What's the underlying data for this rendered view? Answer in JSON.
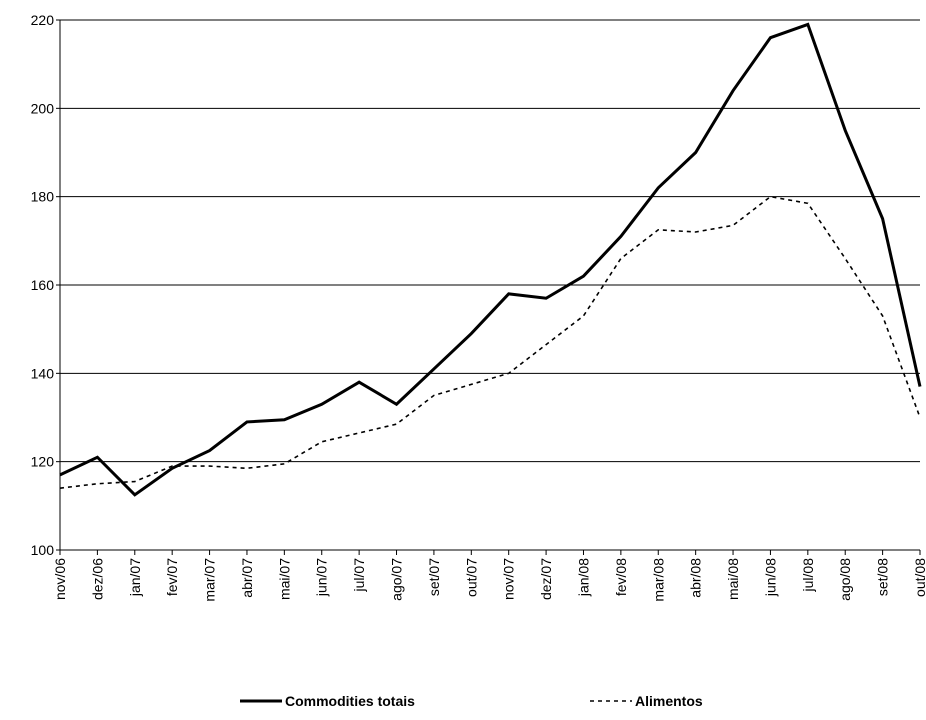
{
  "chart_data": {
    "type": "line",
    "categories": [
      "nov/06",
      "dez/06",
      "jan/07",
      "fev/07",
      "mar/07",
      "abr/07",
      "mai/07",
      "jun/07",
      "jul/07",
      "ago/07",
      "set/07",
      "out/07",
      "nov/07",
      "dez/07",
      "jan/08",
      "fev/08",
      "mar/08",
      "abr/08",
      "mai/08",
      "jun/08",
      "jul/08",
      "ago/08",
      "set/08",
      "out/08"
    ],
    "series": [
      {
        "name": "Commodities totais",
        "color": "#000000",
        "dash": "solid",
        "values": [
          117,
          121,
          112.5,
          118.5,
          122.5,
          129,
          129.5,
          133,
          138,
          133,
          141,
          149,
          158,
          157,
          162,
          171,
          182,
          190,
          204,
          216,
          219,
          195,
          175,
          137
        ]
      },
      {
        "name": "Alimentos",
        "color": "#000000",
        "dash": "dashed",
        "values": [
          114,
          115,
          115.5,
          119,
          119,
          118.5,
          119.5,
          124.5,
          126.5,
          128.5,
          135,
          137.5,
          140,
          146.5,
          153,
          166,
          172.5,
          172,
          173.5,
          180,
          178.5,
          166,
          153,
          130
        ]
      }
    ],
    "ylim": [
      100,
      220
    ],
    "yticks": [
      100,
      120,
      140,
      160,
      180,
      200,
      220
    ],
    "grid": true,
    "legend": "bottom"
  }
}
